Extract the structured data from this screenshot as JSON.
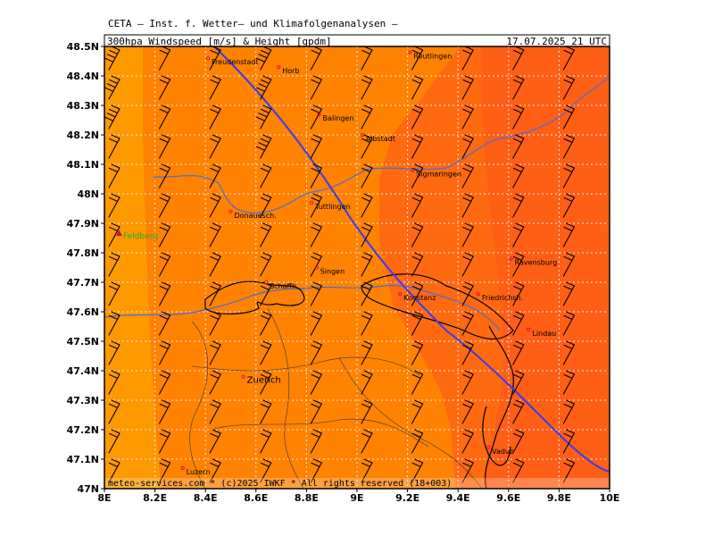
{
  "header": {
    "institute": "CETA — Inst. f. Wetter— und Klimafolgenanalysen —",
    "product": "300hpa Windspeed [m/s] & Height [gpdm]",
    "datetime": "17.07.2025 21 UTC"
  },
  "footer": {
    "copyright": "meteo-services.com * (c)2025 IWKF * All rights reserved (18+003)"
  },
  "axes": {
    "x_labels": [
      "8E",
      "8.2E",
      "8.4E",
      "8.6E",
      "8.8E",
      "9E",
      "9.2E",
      "9.4E",
      "9.6E",
      "9.8E",
      "10E"
    ],
    "y_labels": [
      "48.5N",
      "48.4N",
      "48.3N",
      "48.2N",
      "48.1N",
      "48N",
      "47.9N",
      "47.8N",
      "47.7N",
      "47.6N",
      "47.5N",
      "47.4N",
      "47.3N",
      "47.2N",
      "47.1N",
      "47N"
    ],
    "lon_range": [
      8.0,
      10.0
    ],
    "lat_range": [
      47.0,
      48.5
    ]
  },
  "colors": {
    "zone1": "#ff9900",
    "zone2": "#ff8200",
    "zone3": "#ff6a10",
    "zone4": "#ff5a18",
    "height_contour": "#3a3af0",
    "river": "#4a6cd8",
    "border": "#000000",
    "city_marker": "#e0004a",
    "peak_marker": "#e0004a",
    "peak_label": "#22aa22"
  },
  "cities": [
    {
      "name": "Freudenstadt",
      "lon": 8.41,
      "lat": 48.46
    },
    {
      "name": "Horb",
      "lon": 8.69,
      "lat": 48.43
    },
    {
      "name": "Reutlingen",
      "lon": 9.21,
      "lat": 48.48
    },
    {
      "name": "Balingen",
      "lon": 8.85,
      "lat": 48.27
    },
    {
      "name": "Albstadt",
      "lon": 9.02,
      "lat": 48.2
    },
    {
      "name": "Sigmaringen",
      "lon": 9.22,
      "lat": 48.08
    },
    {
      "name": "Tuttlingen",
      "lon": 8.82,
      "lat": 47.97
    },
    {
      "name": "Donauesch.",
      "lon": 8.5,
      "lat": 47.94
    },
    {
      "name": "Singen",
      "lon": 8.84,
      "lat": 47.75
    },
    {
      "name": "Schaffh.",
      "lon": 8.64,
      "lat": 47.7
    },
    {
      "name": "Konstanz",
      "lon": 9.17,
      "lat": 47.66
    },
    {
      "name": "Friedrichsh.",
      "lon": 9.48,
      "lat": 47.66
    },
    {
      "name": "Ravensburg",
      "lon": 9.61,
      "lat": 47.78
    },
    {
      "name": "Lindau",
      "lon": 9.68,
      "lat": 47.54
    },
    {
      "name": "Vaduz",
      "lon": 9.52,
      "lat": 47.14
    },
    {
      "name": "Luzern",
      "lon": 8.31,
      "lat": 47.07
    },
    {
      "name": "Zuerich",
      "lon": 8.55,
      "lat": 47.38,
      "big": true
    }
  ],
  "peak": {
    "name": "Feldberg",
    "lon": 8.0,
    "lat": 47.87
  }
}
